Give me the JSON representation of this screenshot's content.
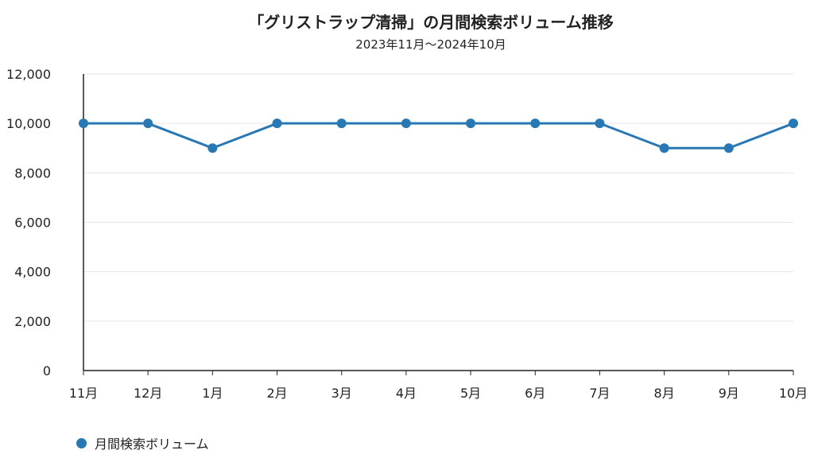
{
  "chart_data": {
    "type": "line",
    "title": "「グリストラップ清掃」の月間検索ボリューム推移",
    "subtitle": "2023年11月～2024年10月",
    "categories": [
      "11月",
      "12月",
      "1月",
      "2月",
      "3月",
      "4月",
      "5月",
      "6月",
      "7月",
      "8月",
      "9月",
      "10月"
    ],
    "series": [
      {
        "name": "月間検索ボリューム",
        "values": [
          10000,
          10000,
          9000,
          10000,
          10000,
          10000,
          10000,
          10000,
          10000,
          9000,
          9000,
          10000
        ],
        "color": "#2878b5"
      }
    ],
    "ylim": [
      0,
      12000
    ],
    "yticks": [
      "0",
      "2,000",
      "4,000",
      "6,000",
      "8,000",
      "10,000",
      "12,000"
    ],
    "ytick_values": [
      0,
      2000,
      4000,
      6000,
      8000,
      10000,
      12000
    ],
    "grid": true,
    "legend_position": "bottom-left"
  }
}
